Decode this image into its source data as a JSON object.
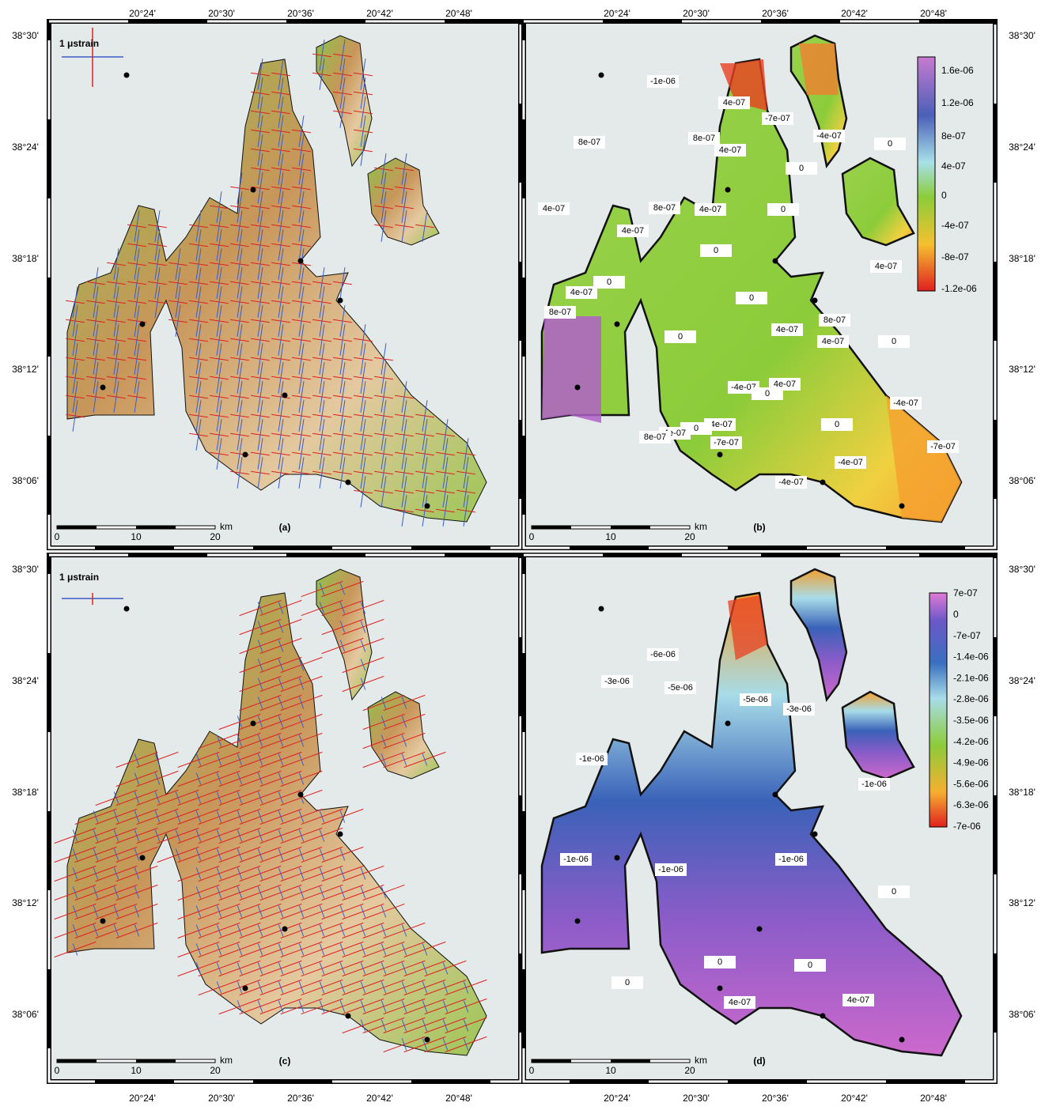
{
  "panels": [
    {
      "label": "(a)",
      "legend": "1 μstrain"
    },
    {
      "label": "(b)"
    },
    {
      "label": "(c)",
      "legend": "1 μstrain"
    },
    {
      "label": "(d)"
    }
  ],
  "lon_ticks": [
    "20°24'",
    "20°30'",
    "20°36'",
    "20°42'",
    "20°48'"
  ],
  "lat_ticks": [
    "38°30'",
    "38°24'",
    "38°18'",
    "38°12'",
    "38°06'"
  ],
  "scale_bar": {
    "ticks": [
      "0",
      "10",
      "20"
    ],
    "unit": "km"
  },
  "colorbar_b": [
    "1.6e-06",
    "1.2e-06",
    "8e-07",
    "4e-07",
    "0",
    "-4e-07",
    "-8e-07",
    "-1.2e-06"
  ],
  "colorbar_d": [
    "7e-07",
    "0",
    "-7e-07",
    "-1.4e-06",
    "-2.1e-06",
    "-2.8e-06",
    "-3.5e-06",
    "-4.2e-06",
    "-4.9e-06",
    "-5.6e-06",
    "-6.3e-06",
    "-7e-06"
  ],
  "contours_b": [
    "-1e-06",
    "4e-07",
    "-7e-07",
    "-4e-07",
    "8e-07",
    "0",
    "8e-07",
    "4e-07",
    "0",
    "4e-07",
    "8e-07",
    "4e-07",
    "0",
    "4e-07",
    "0",
    "4e-07",
    "0",
    "4e-07",
    "8e-07",
    "0",
    "8e-07",
    "4e-07",
    "4e-07",
    "0",
    "0",
    "-4e-07",
    "0",
    "4e-07",
    "-4e-07",
    "0",
    "-4e-07",
    "0",
    "4e-07",
    "8e-07",
    "-7e-07",
    "-7e-07",
    "-4e-07",
    "-4e-07"
  ],
  "contours_d": [
    "-6e-06",
    "-5e-06",
    "-3e-06",
    "-5e-06",
    "-3e-06",
    "-1e-06",
    "-1e-06",
    "-1e-06",
    "-1e-06",
    "-1e-06",
    "0",
    "0",
    "0",
    "0",
    "4e-07",
    "4e-07"
  ]
}
